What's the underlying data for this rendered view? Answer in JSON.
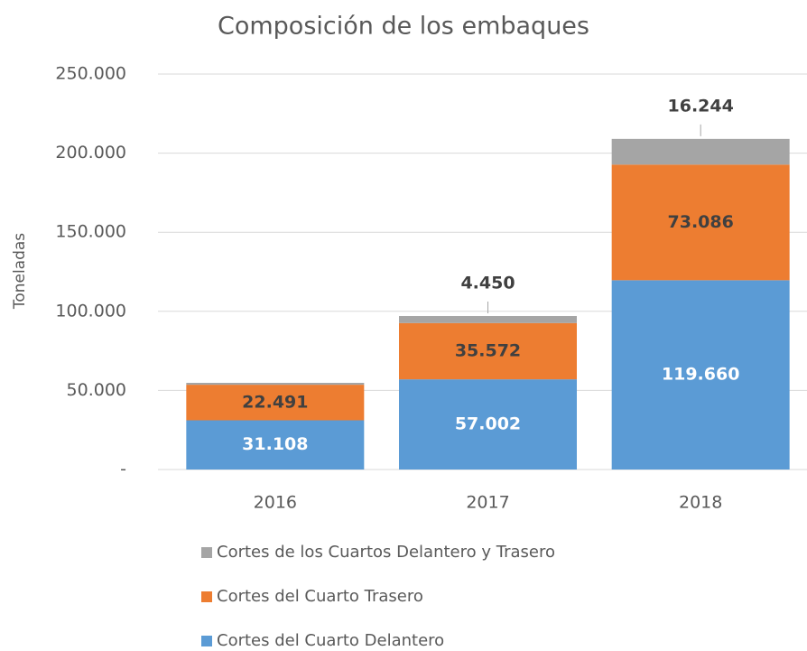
{
  "chart_data": {
    "type": "stacked_bar",
    "title": "Composición de los embaques",
    "y_label": "Toneladas",
    "categories": [
      "2016",
      "2017",
      "2018"
    ],
    "series": [
      {
        "name": "Cortes del Cuarto Delantero",
        "color": "#5b9bd5",
        "values": [
          31108,
          57002,
          119660
        ],
        "value_labels": [
          "31.108",
          "57.002",
          "119.660"
        ]
      },
      {
        "name": "Cortes del Cuarto Trasero",
        "color": "#ed7d31",
        "values": [
          22491,
          35572,
          73086
        ],
        "value_labels": [
          "22.491",
          "35.572",
          "73.086"
        ]
      },
      {
        "name": "Cortes de los Cuartos Delantero y Trasero",
        "color": "#a5a5a5",
        "values": [
          1200,
          4450,
          16244
        ],
        "value_labels": [
          null,
          "4.450",
          "16.244"
        ]
      }
    ],
    "ylim": [
      0,
      250000
    ],
    "yticks": [
      {
        "value": 0,
        "label": "-"
      },
      {
        "value": 50000,
        "label": "50.000"
      },
      {
        "value": 100000,
        "label": "100.000"
      },
      {
        "value": 150000,
        "label": "150.000"
      },
      {
        "value": 200000,
        "label": "200.000"
      },
      {
        "value": 250000,
        "label": "250.000"
      }
    ],
    "grid": true
  }
}
